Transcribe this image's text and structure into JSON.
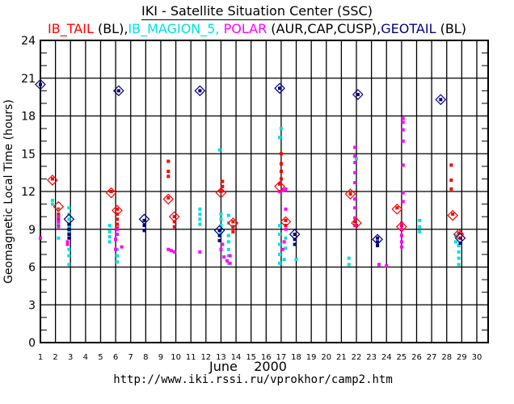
{
  "chart_data": {
    "type": "scatter",
    "title": "IKI - Satellite Situation Center (SSC)",
    "legend": [
      {
        "name": "IB_TAIL",
        "suffix": " (BL),",
        "color": "#ff0000"
      },
      {
        "name": "IB_MAGION_5,",
        "suffix": " ",
        "color": "#00e0e0"
      },
      {
        "name": "POLAR",
        "suffix": " (AUR,CAP,CUSP),",
        "color": "#ff00ff"
      },
      {
        "name": "GEOTAIL",
        "suffix": " (BL)",
        "color": "#000080"
      }
    ],
    "xlabel": "June    2000",
    "ylabel": "Geomagnetic Local Time (hours)",
    "x_ticks": [
      "1",
      "2",
      "3",
      "4",
      "5",
      "6",
      "7",
      "8",
      "9",
      "10",
      "11",
      "12",
      "13",
      "14",
      "15",
      "16",
      "17",
      "18",
      "19",
      "20",
      "21",
      "22",
      "23",
      "24",
      "25",
      "26",
      "27",
      "28",
      "29",
      "30"
    ],
    "y_ticks": [
      "0",
      "3",
      "6",
      "9",
      "12",
      "15",
      "18",
      "21",
      "24"
    ],
    "xlim": [
      1,
      30.8
    ],
    "ylim": [
      0,
      24
    ],
    "grid": true,
    "footer": "http://www.iki.rssi.ru/vprokhor/camp2.htm",
    "series": [
      {
        "name": "IB_TAIL",
        "color": "#ff0000",
        "points": [
          [
            1.8,
            13.0
          ],
          [
            2.2,
            10.6
          ],
          [
            2.2,
            10.2
          ],
          [
            2.2,
            9.8
          ],
          [
            2.2,
            9.4
          ],
          [
            5.7,
            12.0
          ],
          [
            6.1,
            10.6
          ],
          [
            6.1,
            10.2
          ],
          [
            6.1,
            9.8
          ],
          [
            6.1,
            9.4
          ],
          [
            6.1,
            9.1
          ],
          [
            9.5,
            11.5
          ],
          [
            9.5,
            14.4
          ],
          [
            9.5,
            13.6
          ],
          [
            9.5,
            13.2
          ],
          [
            9.9,
            10.0
          ],
          [
            9.9,
            9.6
          ],
          [
            9.9,
            9.2
          ],
          [
            13.0,
            12.0
          ],
          [
            13.1,
            12.4
          ],
          [
            13.1,
            12.8
          ],
          [
            13.8,
            9.6
          ],
          [
            13.8,
            9.2
          ],
          [
            13.8,
            8.8
          ],
          [
            16.9,
            12.6
          ],
          [
            17.0,
            13.0
          ],
          [
            17.0,
            13.6
          ],
          [
            17.0,
            14.2
          ],
          [
            17.0,
            15.0
          ],
          [
            17.3,
            9.7
          ],
          [
            17.3,
            9.3
          ],
          [
            21.6,
            11.8
          ],
          [
            21.9,
            9.6
          ],
          [
            22.0,
            9.3
          ],
          [
            24.7,
            10.7
          ],
          [
            25.0,
            9.3
          ],
          [
            28.4,
            10.2
          ],
          [
            28.3,
            12.2
          ],
          [
            28.3,
            12.9
          ],
          [
            28.3,
            14.1
          ],
          [
            28.8,
            8.7
          ]
        ]
      },
      {
        "name": "IB_MAGION_5",
        "color": "#00e0e0",
        "points": [
          [
            1.8,
            11.3
          ],
          [
            1.8,
            11.0
          ],
          [
            2.2,
            10.5
          ],
          [
            2.2,
            10.0
          ],
          [
            2.2,
            9.5
          ],
          [
            2.2,
            8.3
          ],
          [
            2.9,
            10.7
          ],
          [
            2.9,
            10.2
          ],
          [
            2.9,
            9.8
          ],
          [
            2.9,
            9.2
          ],
          [
            2.9,
            8.8
          ],
          [
            2.9,
            7.4
          ],
          [
            2.9,
            6.9
          ],
          [
            2.9,
            6.2
          ],
          [
            5.6,
            9.3
          ],
          [
            5.6,
            8.8
          ],
          [
            5.6,
            8.4
          ],
          [
            5.6,
            8.0
          ],
          [
            6.1,
            7.4
          ],
          [
            6.1,
            6.9
          ],
          [
            6.1,
            6.4
          ],
          [
            11.6,
            10.6
          ],
          [
            11.6,
            10.2
          ],
          [
            11.6,
            9.8
          ],
          [
            11.6,
            9.4
          ],
          [
            12.9,
            15.3
          ],
          [
            13.0,
            10.2
          ],
          [
            13.0,
            9.8
          ],
          [
            13.0,
            9.3
          ],
          [
            13.0,
            8.7
          ],
          [
            13.5,
            10.1
          ],
          [
            13.5,
            9.5
          ],
          [
            13.5,
            8.5
          ],
          [
            13.5,
            8.0
          ],
          [
            13.5,
            7.4
          ],
          [
            13.5,
            6.9
          ],
          [
            13.5,
            6.3
          ],
          [
            16.9,
            16.3
          ],
          [
            17.0,
            17.0
          ],
          [
            16.9,
            9.3
          ],
          [
            16.9,
            8.6
          ],
          [
            16.9,
            7.8
          ],
          [
            16.9,
            7.0
          ],
          [
            16.9,
            6.3
          ],
          [
            17.2,
            6.6
          ],
          [
            17.3,
            7.5
          ],
          [
            17.3,
            8.3
          ],
          [
            18.0,
            6.6
          ],
          [
            21.5,
            6.7
          ],
          [
            21.5,
            6.2
          ],
          [
            22.0,
            14.6
          ],
          [
            23.5,
            6.2
          ],
          [
            26.2,
            9.7
          ],
          [
            26.2,
            9.2
          ],
          [
            26.2,
            8.8
          ],
          [
            28.6,
            8.5
          ],
          [
            28.6,
            8.0
          ],
          [
            28.8,
            7.7
          ],
          [
            28.8,
            7.2
          ],
          [
            28.8,
            6.7
          ],
          [
            28.8,
            6.2
          ]
        ]
      },
      {
        "name": "POLAR",
        "color": "#ff00ff",
        "points": [
          [
            1.0,
            8.3
          ],
          [
            2.2,
            9.2
          ],
          [
            2.2,
            9.6
          ],
          [
            2.2,
            10.0
          ],
          [
            2.8,
            7.8
          ],
          [
            2.8,
            8.0
          ],
          [
            6.0,
            7.4
          ],
          [
            6.0,
            8.2
          ],
          [
            6.1,
            8.6
          ],
          [
            6.1,
            9.0
          ],
          [
            6.4,
            7.6
          ],
          [
            9.5,
            7.4
          ],
          [
            9.7,
            7.3
          ],
          [
            9.9,
            7.2
          ],
          [
            11.6,
            7.2
          ],
          [
            13.0,
            7.4
          ],
          [
            13.1,
            7.8
          ],
          [
            13.2,
            6.8
          ],
          [
            13.4,
            6.5
          ],
          [
            13.6,
            6.9
          ],
          [
            13.6,
            6.3
          ],
          [
            16.9,
            12.0
          ],
          [
            17.1,
            12.1
          ],
          [
            17.3,
            12.2
          ],
          [
            17.3,
            10.6
          ],
          [
            17.3,
            9.0
          ],
          [
            17.2,
            8.0
          ],
          [
            17.1,
            7.4
          ],
          [
            21.9,
            15.5
          ],
          [
            21.9,
            14.8
          ],
          [
            21.9,
            14.3
          ],
          [
            21.9,
            13.5
          ],
          [
            21.9,
            12.7
          ],
          [
            21.9,
            11.4
          ],
          [
            21.9,
            10.7
          ],
          [
            21.9,
            9.9
          ],
          [
            21.9,
            9.3
          ],
          [
            23.5,
            6.2
          ],
          [
            24.0,
            6.1
          ],
          [
            25.1,
            17.8
          ],
          [
            25.1,
            17.5
          ],
          [
            25.1,
            16.9
          ],
          [
            25.1,
            16.0
          ],
          [
            25.1,
            14.1
          ],
          [
            25.1,
            11.9
          ],
          [
            25.1,
            11.2
          ],
          [
            25.0,
            9.5
          ],
          [
            25.0,
            9.0
          ],
          [
            25.0,
            8.5
          ],
          [
            25.0,
            8.0
          ],
          [
            25.0,
            7.6
          ]
        ]
      },
      {
        "name": "GEOTAIL",
        "color": "#000080",
        "points": [
          [
            1.0,
            20.5
          ],
          [
            2.9,
            9.4
          ],
          [
            2.9,
            9.0
          ],
          [
            2.9,
            8.6
          ],
          [
            2.9,
            8.3
          ],
          [
            6.2,
            20.0
          ],
          [
            7.9,
            9.7
          ],
          [
            7.9,
            9.3
          ],
          [
            7.9,
            8.9
          ],
          [
            11.6,
            20.0
          ],
          [
            12.9,
            8.9
          ],
          [
            12.9,
            8.5
          ],
          [
            12.9,
            8.1
          ],
          [
            16.9,
            20.2
          ],
          [
            17.9,
            8.6
          ],
          [
            17.9,
            8.2
          ],
          [
            17.9,
            7.8
          ],
          [
            22.1,
            19.7
          ],
          [
            23.4,
            8.3
          ],
          [
            23.4,
            8.0
          ],
          [
            23.4,
            7.7
          ],
          [
            27.6,
            19.3
          ],
          [
            28.9,
            8.3
          ],
          [
            28.9,
            7.9
          ]
        ]
      }
    ],
    "diamonds": [
      {
        "series": "GEOTAIL",
        "color": "#000080",
        "points": [
          [
            1.0,
            20.5
          ],
          [
            6.2,
            20.0
          ],
          [
            11.6,
            20.0
          ],
          [
            16.9,
            20.2
          ],
          [
            22.1,
            19.7
          ],
          [
            27.6,
            19.3
          ],
          [
            2.9,
            9.8
          ],
          [
            7.9,
            9.8
          ],
          [
            12.9,
            8.9
          ],
          [
            17.9,
            8.6
          ],
          [
            23.4,
            8.2
          ],
          [
            28.9,
            8.3
          ]
        ]
      },
      {
        "series": "IB_TAIL",
        "color": "#ff0000",
        "points": [
          [
            1.8,
            12.9
          ],
          [
            2.2,
            10.8
          ],
          [
            5.7,
            11.9
          ],
          [
            6.1,
            10.5
          ],
          [
            9.5,
            11.4
          ],
          [
            9.9,
            10.0
          ],
          [
            13.0,
            11.9
          ],
          [
            13.8,
            9.5
          ],
          [
            16.9,
            12.4
          ],
          [
            17.3,
            9.6
          ],
          [
            21.6,
            11.8
          ],
          [
            22.0,
            9.5
          ],
          [
            24.7,
            10.6
          ],
          [
            25.0,
            9.2
          ],
          [
            28.4,
            10.1
          ],
          [
            28.8,
            8.6
          ]
        ]
      }
    ]
  }
}
